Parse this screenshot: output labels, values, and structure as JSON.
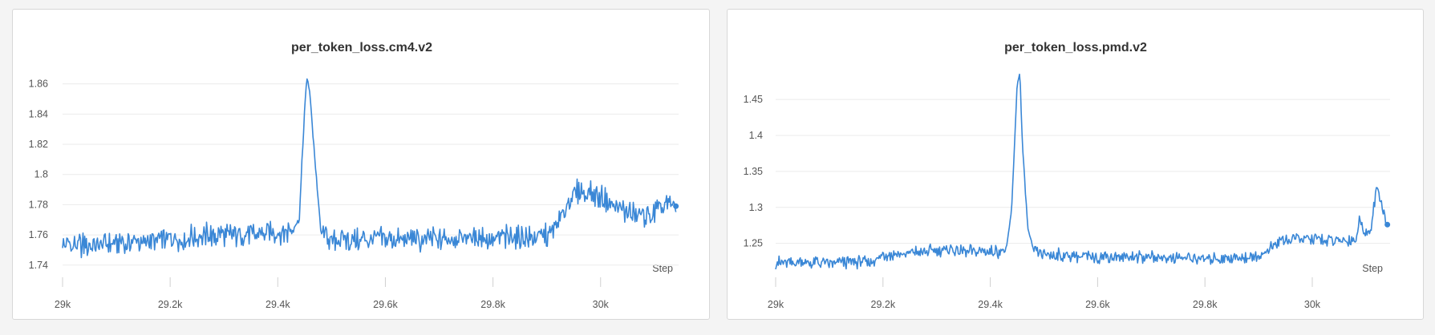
{
  "charts": [
    {
      "title": "per_token_loss.cm4.v2",
      "step_label": "Step",
      "y_ticks": [
        "1.74",
        "1.76",
        "1.78",
        "1.8",
        "1.82",
        "1.84",
        "1.86"
      ],
      "x_ticks": [
        "29k",
        "29.2k",
        "29.4k",
        "29.6k",
        "29.8k",
        "30k"
      ]
    },
    {
      "title": "per_token_loss.pmd.v2",
      "step_label": "Step",
      "y_ticks": [
        "1.25",
        "1.3",
        "1.35",
        "1.4",
        "1.45"
      ],
      "x_ticks": [
        "29k",
        "29.2k",
        "29.4k",
        "29.6k",
        "29.8k",
        "30k"
      ]
    }
  ],
  "chart_data": [
    {
      "type": "line",
      "title": "per_token_loss.cm4.v2",
      "xlabel": "Step",
      "ylabel": "",
      "xlim": [
        29000,
        30145
      ],
      "ylim": [
        1.733,
        1.872
      ],
      "x_ticks": [
        29000,
        29200,
        29400,
        29600,
        29800,
        30000
      ],
      "y_ticks": [
        1.74,
        1.76,
        1.78,
        1.8,
        1.82,
        1.84,
        1.86
      ],
      "grid": true,
      "color": "#3a87d6",
      "series": [
        {
          "x": [
            29000,
            29050,
            29100,
            29150,
            29200,
            29250,
            29300,
            29350,
            29400,
            29420,
            29440,
            29450,
            29455,
            29460,
            29470,
            29480,
            29500,
            29550,
            29600,
            29650,
            29700,
            29750,
            29800,
            29850,
            29900,
            29920,
            29940,
            29960,
            29980,
            30000,
            30030,
            30060,
            30090,
            30100,
            30120,
            30140
          ],
          "y": [
            1.752,
            1.753,
            1.754,
            1.756,
            1.757,
            1.759,
            1.76,
            1.76,
            1.761,
            1.762,
            1.77,
            1.845,
            1.865,
            1.852,
            1.805,
            1.762,
            1.757,
            1.756,
            1.757,
            1.757,
            1.757,
            1.758,
            1.758,
            1.758,
            1.759,
            1.766,
            1.782,
            1.79,
            1.788,
            1.785,
            1.778,
            1.774,
            1.773,
            1.775,
            1.78,
            1.779
          ]
        }
      ]
    },
    {
      "type": "line",
      "title": "per_token_loss.pmd.v2",
      "xlabel": "Step",
      "ylabel": "",
      "xlim": [
        29000,
        30145
      ],
      "ylim": [
        1.205,
        1.497
      ],
      "x_ticks": [
        29000,
        29200,
        29400,
        29600,
        29800,
        30000
      ],
      "y_ticks": [
        1.25,
        1.3,
        1.35,
        1.4,
        1.45
      ],
      "grid": true,
      "color": "#3a87d6",
      "series": [
        {
          "x": [
            29000,
            29050,
            29100,
            29150,
            29180,
            29200,
            29250,
            29300,
            29350,
            29400,
            29430,
            29440,
            29450,
            29455,
            29460,
            29470,
            29480,
            29500,
            29550,
            29600,
            29650,
            29700,
            29750,
            29800,
            29850,
            29900,
            29920,
            29940,
            29960,
            30000,
            30050,
            30080,
            30090,
            30100,
            30110,
            30120,
            30130,
            30140
          ],
          "y": [
            1.223,
            1.223,
            1.223,
            1.224,
            1.225,
            1.234,
            1.236,
            1.24,
            1.24,
            1.238,
            1.24,
            1.3,
            1.47,
            1.488,
            1.385,
            1.27,
            1.24,
            1.234,
            1.233,
            1.232,
            1.231,
            1.231,
            1.23,
            1.229,
            1.23,
            1.232,
            1.24,
            1.254,
            1.256,
            1.256,
            1.253,
            1.255,
            1.285,
            1.26,
            1.275,
            1.33,
            1.3,
            1.276
          ]
        }
      ]
    }
  ]
}
